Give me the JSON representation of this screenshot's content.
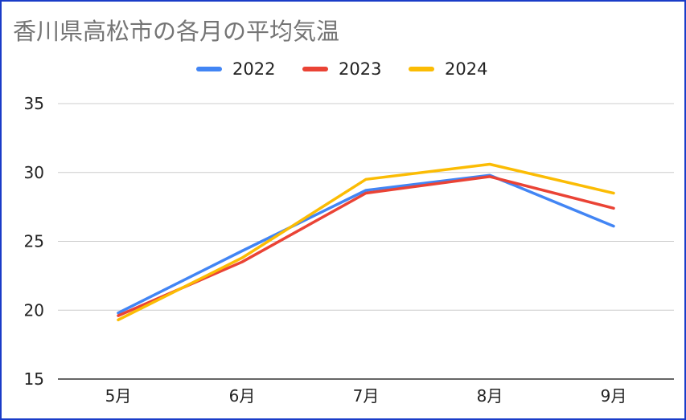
{
  "chart_data": {
    "type": "line",
    "title": "香川県高松市の各月の平均気温",
    "categories": [
      "5月",
      "6月",
      "7月",
      "8月",
      "9月"
    ],
    "series": [
      {
        "name": "2022",
        "color": "#4285f4",
        "values": [
          19.8,
          24.3,
          28.7,
          29.8,
          26.1
        ]
      },
      {
        "name": "2023",
        "color": "#ea4335",
        "values": [
          19.6,
          23.5,
          28.5,
          29.7,
          27.4
        ]
      },
      {
        "name": "2024",
        "color": "#fbbc04",
        "values": [
          19.3,
          23.8,
          29.5,
          30.6,
          28.5
        ]
      }
    ],
    "ylim": [
      15,
      35
    ],
    "yticks": [
      15,
      20,
      25,
      30,
      35
    ],
    "grid": true,
    "legend_position": "top"
  }
}
